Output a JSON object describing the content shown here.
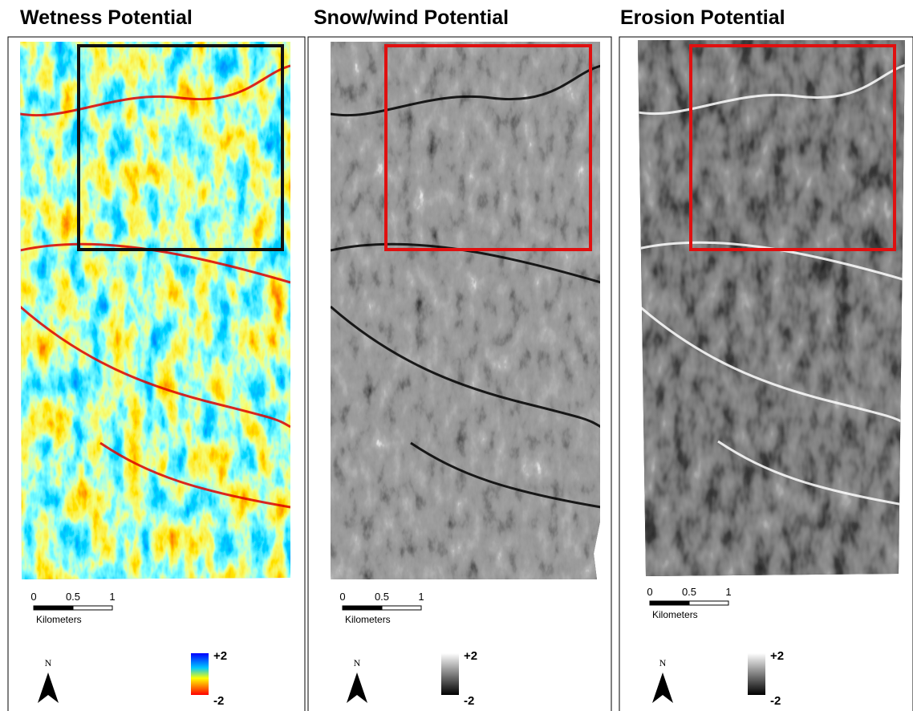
{
  "panels": [
    {
      "title": "Wetness Potential",
      "scale": {
        "ticks": [
          "0",
          "0.5",
          "1"
        ],
        "unit": "Kilometers"
      },
      "north": "N",
      "legend": {
        "high": "+2",
        "low": "-2"
      }
    },
    {
      "title": "Snow/wind Potential",
      "scale": {
        "ticks": [
          "0",
          "0.5",
          "1"
        ],
        "unit": "Kilometers"
      },
      "north": "N",
      "legend": {
        "high": "+2",
        "low": "-2"
      }
    },
    {
      "title": "Erosion Potential",
      "scale": {
        "ticks": [
          "0",
          "0.5",
          "1"
        ],
        "unit": "Kilometers"
      },
      "north": "N",
      "legend": {
        "high": "+2",
        "low": "-2"
      }
    }
  ]
}
